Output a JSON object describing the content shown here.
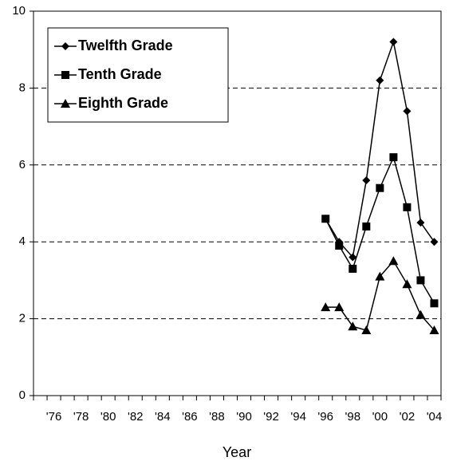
{
  "chart_data": {
    "type": "line",
    "xlabel": "Year",
    "categories": [
      null,
      "'76",
      null,
      "'78",
      null,
      "'80",
      null,
      "'82",
      null,
      "'84",
      null,
      "'86",
      null,
      "'88",
      null,
      "'90",
      null,
      "'92",
      null,
      "'94",
      null,
      "'96",
      null,
      "'98",
      null,
      "'00",
      null,
      "'02",
      null,
      "'04"
    ],
    "series": [
      {
        "name": "Twelfth Grade",
        "color": "#000000",
        "marker": "diamond",
        "values": [
          null,
          null,
          null,
          null,
          null,
          null,
          null,
          null,
          null,
          null,
          null,
          null,
          null,
          null,
          null,
          null,
          null,
          null,
          null,
          null,
          null,
          4.6,
          4.0,
          3.6,
          5.6,
          8.2,
          9.2,
          7.4,
          4.5,
          4.0
        ]
      },
      {
        "name": "Tenth Grade",
        "color": "#000000",
        "marker": "square",
        "values": [
          null,
          null,
          null,
          null,
          null,
          null,
          null,
          null,
          null,
          null,
          null,
          null,
          null,
          null,
          null,
          null,
          null,
          null,
          null,
          null,
          null,
          4.6,
          3.9,
          3.3,
          4.4,
          5.4,
          6.2,
          4.9,
          3.0,
          2.4
        ]
      },
      {
        "name": "Eighth Grade",
        "color": "#000000",
        "marker": "triangle",
        "values": [
          null,
          null,
          null,
          null,
          null,
          null,
          null,
          null,
          null,
          null,
          null,
          null,
          null,
          null,
          null,
          null,
          null,
          null,
          null,
          null,
          null,
          2.3,
          2.3,
          1.8,
          1.7,
          3.1,
          3.5,
          2.9,
          2.1,
          1.7
        ]
      }
    ],
    "ylim": [
      0,
      10
    ],
    "yticks": [
      0,
      2,
      4,
      6,
      8,
      10
    ],
    "grid": true,
    "legend": "top-left"
  }
}
